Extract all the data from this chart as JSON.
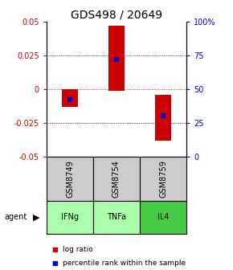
{
  "title": "GDS498 / 20649",
  "samples": [
    "GSM8749",
    "GSM8754",
    "GSM8759"
  ],
  "agents": [
    "IFNg",
    "TNFa",
    "IL4"
  ],
  "log_ratios": [
    -0.013,
    0.047,
    -0.038
  ],
  "log_ratio_bottoms": [
    0.0,
    -0.001,
    -0.004
  ],
  "percentile_ranks": [
    42,
    72,
    30
  ],
  "ylim": [
    -0.05,
    0.05
  ],
  "yticks_left": [
    -0.05,
    -0.025,
    0,
    0.025,
    0.05
  ],
  "yticks_right": [
    0,
    25,
    50,
    75,
    100
  ],
  "bar_color": "#cc0000",
  "percentile_color": "#0000cc",
  "zero_line_color": "#cc0000",
  "sample_box_color": "#cccccc",
  "agent_box_colors": [
    "#aaffaa",
    "#aaffaa",
    "#44cc44"
  ],
  "bar_width": 0.35,
  "percentile_marker_size": 4,
  "title_fontsize": 10,
  "tick_fontsize": 7,
  "label_fontsize": 7,
  "legend_fontsize": 6.5
}
